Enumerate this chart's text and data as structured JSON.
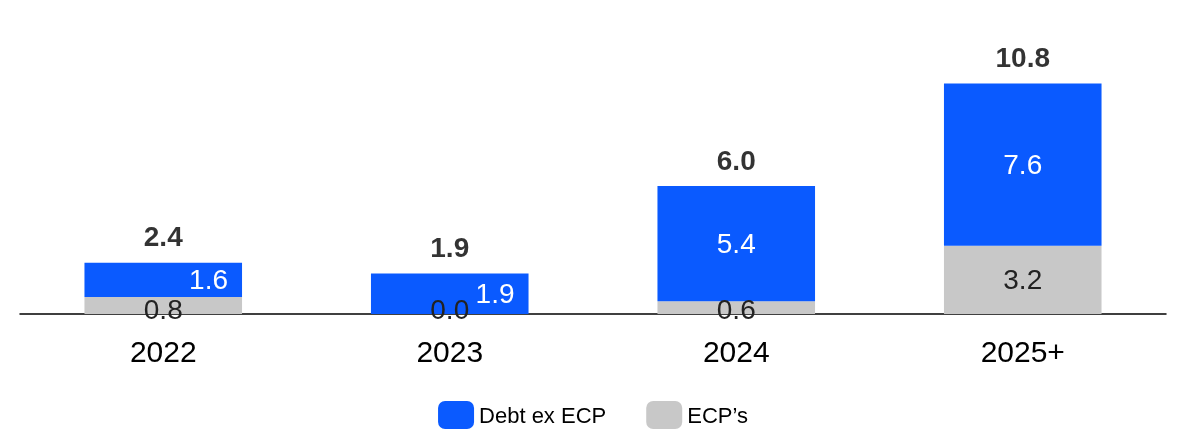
{
  "chart_data": {
    "type": "bar",
    "stacked": true,
    "legend": "bottom",
    "categories": [
      "2022",
      "2023",
      "2024",
      "2025+"
    ],
    "series": [
      {
        "name": "ECP’s",
        "color": "#c8c8c8",
        "values": [
          0.8,
          0.0,
          0.6,
          3.2
        ],
        "value_labels": [
          "0.8",
          "0.0",
          "0.6",
          "3.2"
        ]
      },
      {
        "name": "Debt ex ECP",
        "color": "#0a5aff",
        "values": [
          1.6,
          1.9,
          5.4,
          7.6
        ],
        "value_labels": [
          "1.6",
          "1.9",
          "5.4",
          "7.6"
        ]
      }
    ],
    "totals": [
      "2.4",
      "1.9",
      "6.0",
      "10.8"
    ]
  }
}
